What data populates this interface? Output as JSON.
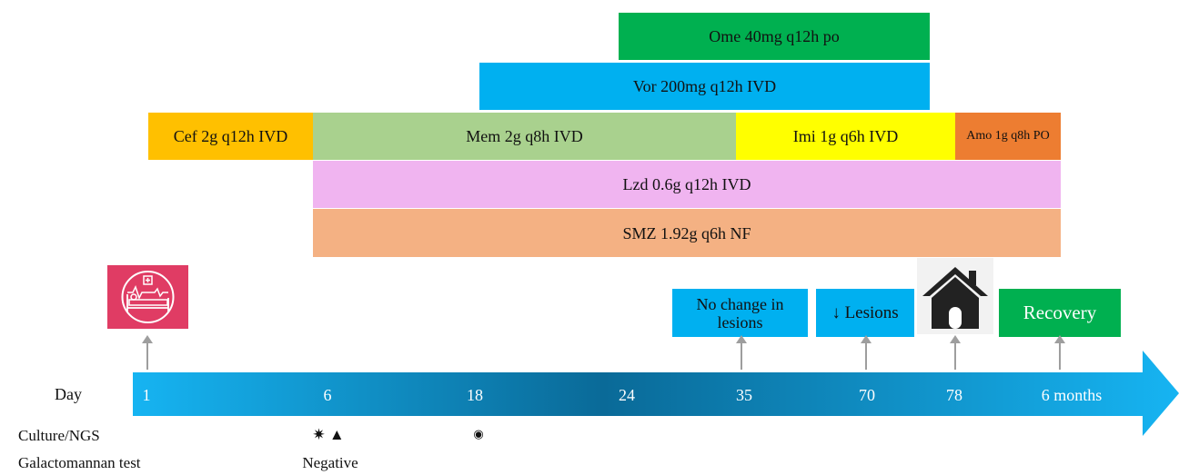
{
  "drugs": {
    "ome": "Ome 40mg q12h po",
    "vor": "Vor 200mg q12h IVD",
    "cef": "Cef 2g q12h IVD",
    "mem": "Mem 2g q8h IVD",
    "imi": "Imi 1g q6h IVD",
    "amo": "Amo 1g q8h PO",
    "lzd": "Lzd 0.6g q12h IVD",
    "smz": "SMZ 1.92g q6h NF"
  },
  "events": {
    "no_change": "No change in lesions",
    "lesions": "↓ Lesions",
    "recovery": "Recovery"
  },
  "timeline": {
    "label": "Day",
    "ticks": [
      "1",
      "6",
      "18",
      "24",
      "35",
      "70",
      "78",
      "6 months"
    ]
  },
  "rows": {
    "culture_label": "Culture/NGS",
    "culture_day6": "✷ ▲",
    "culture_day18": "◉",
    "galacto_label": "Galactomannan test",
    "galacto_day6": "Negative"
  },
  "icons": [
    "hospital-bed-icon",
    "house-icon"
  ],
  "colors": {
    "ome": "#00b050",
    "vor": "#00b0f0",
    "cef": "#ffc000",
    "mem": "#a9d18e",
    "imi": "#ffff00",
    "amo": "#ed7d31",
    "lzd": "#f0b4f0",
    "smz": "#f4b183",
    "event_blue": "#00b0f0",
    "event_green": "#00b050",
    "hospital": "#e03c64"
  }
}
